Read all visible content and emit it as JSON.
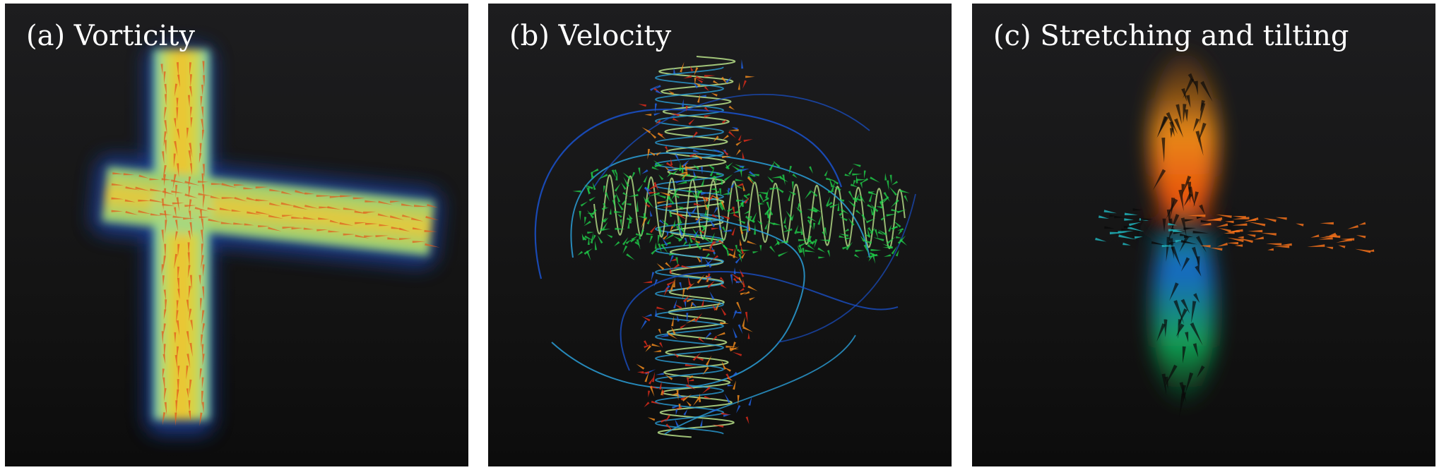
{
  "panels": [
    {
      "title": "(a) Vorticity",
      "colors": {
        "core": "#f0c530",
        "mid": "#c9e070",
        "edge": "#63c7c9",
        "halo": "#1a3f9a",
        "arrow": "#e3581b"
      }
    },
    {
      "title": "(b) Velocity",
      "colors": {
        "streamline_dark": "#1a4fc4",
        "streamline_mid": "#2a9fd8",
        "streamline_light": "#b9e28a",
        "arrow_green": "#1fcf4a",
        "arrow_orange": "#f08a1c",
        "arrow_red": "#d82a1a",
        "arrow_blue": "#2060e0"
      }
    },
    {
      "title": "(c) Stretching and tilting",
      "colors": {
        "upper": "#e8500c",
        "lower": "#1466c8",
        "lower_fade": "#12a050",
        "arrow_dark": "#0a0a0a",
        "arrow_orange": "#f2701a",
        "arrow_teal": "#20b0b8"
      }
    }
  ]
}
